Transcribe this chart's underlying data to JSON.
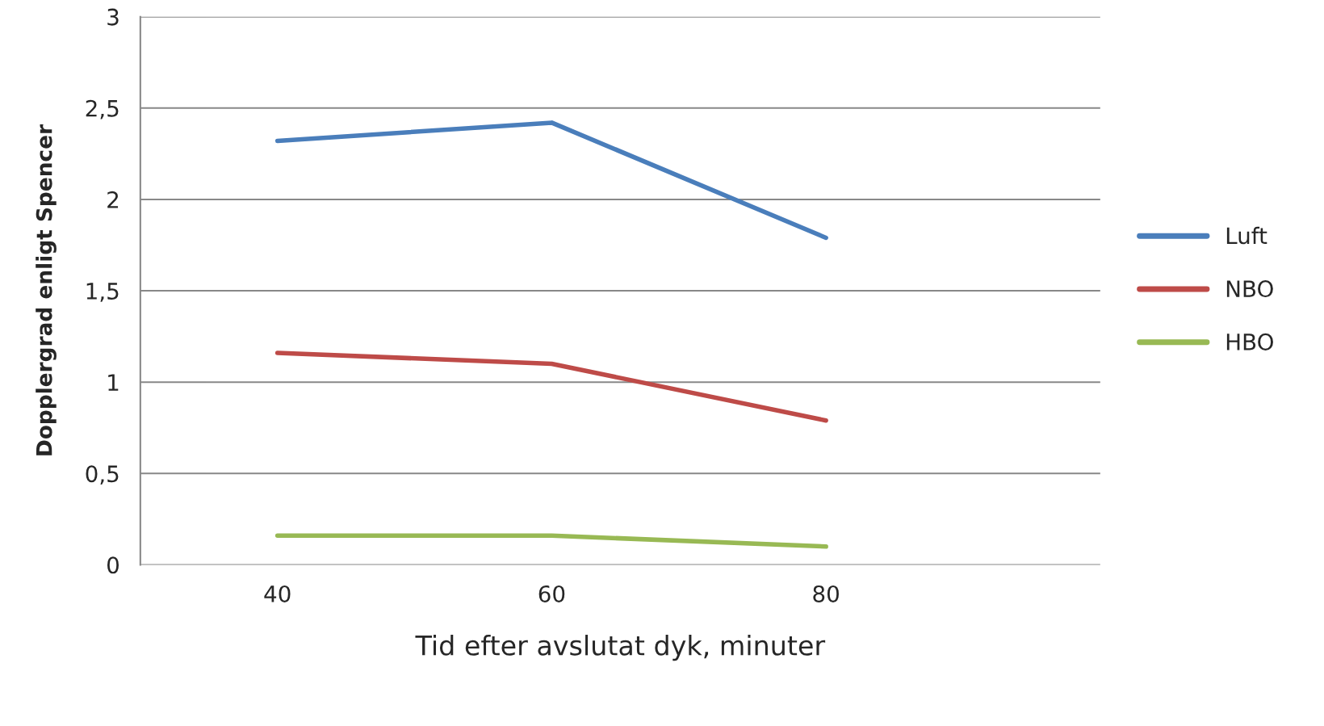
{
  "chart_data": {
    "type": "line",
    "xlabel": "Tid efter avslutat dyk, minuter",
    "ylabel": "Dopplergrad enligt Spencer",
    "categories": [
      "40",
      "60",
      "80"
    ],
    "series": [
      {
        "name": "Luft",
        "color": "#4a7ebb",
        "values": [
          2.32,
          2.42,
          1.79
        ]
      },
      {
        "name": "NBO",
        "color": "#be4b48",
        "values": [
          1.16,
          1.1,
          0.79
        ]
      },
      {
        "name": "HBO",
        "color": "#98b954",
        "values": [
          0.16,
          0.16,
          0.1
        ]
      }
    ],
    "ylim": [
      0,
      3
    ],
    "yticks": [
      0,
      {
        "value": 0.5,
        "label": "0,5"
      },
      1,
      {
        "value": 1.5,
        "label": "1,5"
      },
      2,
      {
        "value": 2.5,
        "label": "2,5"
      },
      3
    ],
    "grid": "y",
    "legend": "right",
    "marker": "none",
    "line_style": "solid"
  }
}
